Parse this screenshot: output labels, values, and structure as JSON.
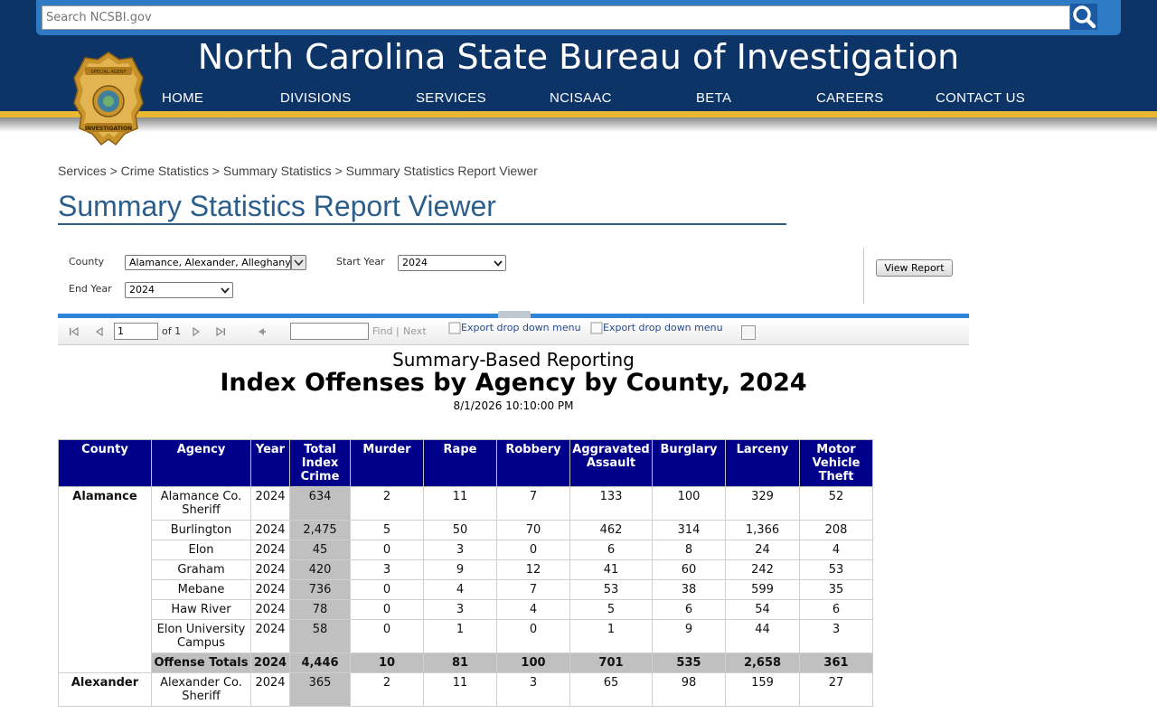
{
  "header": {
    "search_placeholder": "Search NCSBI.gov",
    "site_title": "North Carolina State Bureau of Investigation",
    "nav": [
      "HOME",
      "DIVISIONS",
      "SERVICES",
      "NCISAAC",
      "BETA",
      "CAREERS",
      "CONTACT US"
    ],
    "badge_text": [
      "SPECIAL AGENT",
      "STATE BUREAU OF",
      "INVESTIGATION"
    ]
  },
  "breadcrumb": [
    "Services",
    "Crime Statistics",
    "Summary Statistics",
    "Summary Statistics Report Viewer"
  ],
  "breadcrumb_sep": ">",
  "page_title": "Summary Statistics Report Viewer",
  "params": {
    "county_label": "County",
    "county_value": "Alamance, Alexander, Alleghany",
    "start_year_label": "Start Year",
    "start_year_value": "2024",
    "end_year_label": "End Year",
    "end_year_value": "2024",
    "view_report": "View Report"
  },
  "toolbar": {
    "page_value": "1",
    "of_text": "of 1",
    "find": "Find",
    "sep": "|",
    "next": "Next",
    "export1": "Export drop down menu",
    "export2": "Export drop down menu"
  },
  "report": {
    "subtitle": "Summary-Based Reporting",
    "title": "Index Offenses by Agency by County, 2024",
    "date": "8/1/2026 10:10:00 PM",
    "columns": [
      "County",
      "Agency",
      "Year",
      "Total Index Crime",
      "Murder",
      "Rape",
      "Robbery",
      "Aggravated Assault",
      "Burglary",
      "Larceny",
      "Motor Vehicle Theft"
    ],
    "groups": [
      {
        "county": "Alamance",
        "rows": [
          [
            "Alamance Co. Sheriff",
            "2024",
            "634",
            "2",
            "11",
            "7",
            "133",
            "100",
            "329",
            "52"
          ],
          [
            "Burlington",
            "2024",
            "2,475",
            "5",
            "50",
            "70",
            "462",
            "314",
            "1,366",
            "208"
          ],
          [
            "Elon",
            "2024",
            "45",
            "0",
            "3",
            "0",
            "6",
            "8",
            "24",
            "4"
          ],
          [
            "Graham",
            "2024",
            "420",
            "3",
            "9",
            "12",
            "41",
            "60",
            "242",
            "53"
          ],
          [
            "Mebane",
            "2024",
            "736",
            "0",
            "4",
            "7",
            "53",
            "38",
            "599",
            "35"
          ],
          [
            "Haw River",
            "2024",
            "78",
            "0",
            "3",
            "4",
            "5",
            "6",
            "54",
            "6"
          ],
          [
            "Elon University Campus",
            "2024",
            "58",
            "0",
            "1",
            "0",
            "1",
            "9",
            "44",
            "3"
          ]
        ],
        "total": [
          "Offense Totals",
          "2024",
          "4,446",
          "10",
          "81",
          "100",
          "701",
          "535",
          "2,658",
          "361"
        ]
      },
      {
        "county": "Alexander",
        "rows": [
          [
            "Alexander Co. Sheriff",
            "2024",
            "365",
            "2",
            "11",
            "3",
            "65",
            "98",
            "159",
            "27"
          ]
        ]
      }
    ]
  },
  "colors": {
    "header_bg": "#0d3466",
    "gold": "#e8b832",
    "table_head": "#00008b",
    "gray_cell": "#c0c0c0",
    "title_blue": "#2c5e8c"
  }
}
